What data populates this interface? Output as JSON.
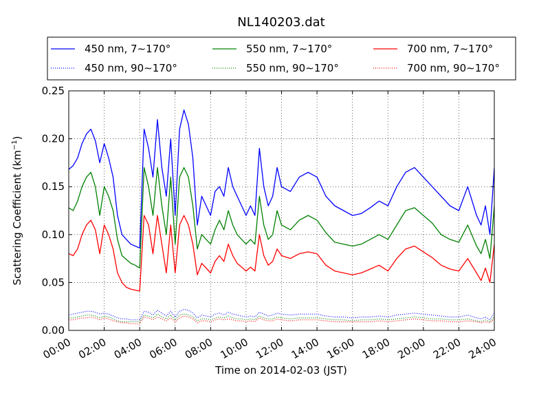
{
  "chart_data": {
    "type": "line",
    "title": "NL140203.dat",
    "xlabel": "Time on 2014-02-03 (JST)",
    "ylabel_main": "Scattering Coefficient (km",
    "ylabel_sup": "−1",
    "ylabel_end": ")",
    "xlim": [
      "00:00",
      "24:00"
    ],
    "ylim": [
      0,
      0.25
    ],
    "grid": true,
    "legend_position": "top",
    "x_ticks": [
      "00:00",
      "02:00",
      "04:00",
      "06:00",
      "08:00",
      "10:00",
      "12:00",
      "14:00",
      "16:00",
      "18:00",
      "20:00",
      "22:00",
      "24:00"
    ],
    "y_ticks": [
      "0.00",
      "0.05",
      "0.10",
      "0.15",
      "0.20",
      "0.25"
    ],
    "x_hours": [
      0,
      0.25,
      0.5,
      0.75,
      1,
      1.25,
      1.5,
      1.75,
      2,
      2.25,
      2.5,
      2.75,
      3,
      3.25,
      3.5,
      3.75,
      4,
      4.25,
      4.5,
      4.75,
      5,
      5.25,
      5.5,
      5.75,
      6,
      6.25,
      6.5,
      6.75,
      7,
      7.25,
      7.5,
      7.75,
      8,
      8.25,
      8.5,
      8.75,
      9,
      9.25,
      9.5,
      9.75,
      10,
      10.25,
      10.5,
      10.75,
      11,
      11.25,
      11.5,
      11.75,
      12,
      12.5,
      13,
      13.5,
      14,
      14.5,
      15,
      15.5,
      16,
      16.5,
      17,
      17.5,
      18,
      18.5,
      19,
      19.5,
      20,
      20.5,
      21,
      21.5,
      22,
      22.5,
      23,
      23.25,
      23.5,
      23.75,
      24
    ],
    "series": [
      {
        "name": "450 nm, 7∼170°",
        "color": "#0000ff",
        "style": "solid",
        "values": [
          0.168,
          0.172,
          0.18,
          0.195,
          0.205,
          0.21,
          0.198,
          0.175,
          0.195,
          0.18,
          0.16,
          0.12,
          0.1,
          0.095,
          0.09,
          0.088,
          0.086,
          0.21,
          0.19,
          0.16,
          0.22,
          0.17,
          0.14,
          0.2,
          0.12,
          0.21,
          0.23,
          0.215,
          0.18,
          0.11,
          0.14,
          0.13,
          0.12,
          0.145,
          0.15,
          0.14,
          0.17,
          0.15,
          0.14,
          0.13,
          0.12,
          0.13,
          0.12,
          0.19,
          0.15,
          0.13,
          0.14,
          0.17,
          0.15,
          0.145,
          0.16,
          0.165,
          0.16,
          0.14,
          0.13,
          0.125,
          0.12,
          0.122,
          0.128,
          0.135,
          0.13,
          0.15,
          0.165,
          0.17,
          0.16,
          0.15,
          0.14,
          0.13,
          0.125,
          0.15,
          0.12,
          0.11,
          0.13,
          0.1,
          0.17
        ]
      },
      {
        "name": "550 nm, 7∼170°",
        "color": "#008000",
        "style": "solid",
        "values": [
          0.128,
          0.125,
          0.135,
          0.15,
          0.16,
          0.165,
          0.15,
          0.12,
          0.15,
          0.14,
          0.125,
          0.095,
          0.078,
          0.074,
          0.07,
          0.068,
          0.065,
          0.17,
          0.15,
          0.12,
          0.17,
          0.13,
          0.1,
          0.16,
          0.09,
          0.16,
          0.17,
          0.16,
          0.13,
          0.085,
          0.1,
          0.095,
          0.09,
          0.105,
          0.115,
          0.105,
          0.125,
          0.11,
          0.1,
          0.095,
          0.09,
          0.095,
          0.09,
          0.14,
          0.11,
          0.095,
          0.1,
          0.125,
          0.11,
          0.105,
          0.115,
          0.12,
          0.115,
          0.102,
          0.092,
          0.09,
          0.088,
          0.09,
          0.095,
          0.1,
          0.095,
          0.11,
          0.125,
          0.128,
          0.12,
          0.112,
          0.1,
          0.095,
          0.092,
          0.11,
          0.088,
          0.08,
          0.095,
          0.075,
          0.13
        ]
      },
      {
        "name": "700 nm, 7∼170°",
        "color": "#ff0000",
        "style": "solid",
        "values": [
          0.08,
          0.078,
          0.085,
          0.1,
          0.11,
          0.115,
          0.105,
          0.08,
          0.11,
          0.1,
          0.085,
          0.06,
          0.05,
          0.045,
          0.043,
          0.042,
          0.041,
          0.12,
          0.11,
          0.08,
          0.12,
          0.09,
          0.06,
          0.11,
          0.06,
          0.11,
          0.12,
          0.11,
          0.09,
          0.058,
          0.07,
          0.065,
          0.06,
          0.072,
          0.078,
          0.072,
          0.09,
          0.078,
          0.07,
          0.066,
          0.062,
          0.066,
          0.062,
          0.1,
          0.078,
          0.068,
          0.072,
          0.085,
          0.078,
          0.075,
          0.08,
          0.082,
          0.08,
          0.068,
          0.062,
          0.06,
          0.058,
          0.06,
          0.064,
          0.068,
          0.062,
          0.075,
          0.085,
          0.088,
          0.082,
          0.076,
          0.068,
          0.064,
          0.062,
          0.075,
          0.06,
          0.052,
          0.065,
          0.05,
          0.09
        ]
      },
      {
        "name": "450 nm, 90∼170°",
        "color": "#0000ff",
        "style": "dotted",
        "values": [
          0.016,
          0.017,
          0.018,
          0.019,
          0.02,
          0.02,
          0.019,
          0.017,
          0.018,
          0.017,
          0.015,
          0.013,
          0.012,
          0.012,
          0.011,
          0.011,
          0.011,
          0.02,
          0.019,
          0.016,
          0.021,
          0.018,
          0.015,
          0.02,
          0.014,
          0.02,
          0.022,
          0.021,
          0.018,
          0.013,
          0.016,
          0.015,
          0.014,
          0.017,
          0.018,
          0.016,
          0.019,
          0.017,
          0.016,
          0.015,
          0.014,
          0.015,
          0.014,
          0.019,
          0.017,
          0.015,
          0.016,
          0.018,
          0.017,
          0.016,
          0.017,
          0.017,
          0.017,
          0.015,
          0.014,
          0.014,
          0.013,
          0.014,
          0.014,
          0.015,
          0.014,
          0.016,
          0.017,
          0.018,
          0.017,
          0.016,
          0.015,
          0.014,
          0.014,
          0.016,
          0.013,
          0.012,
          0.014,
          0.011,
          0.018
        ]
      },
      {
        "name": "550 nm, 90∼170°",
        "color": "#008000",
        "style": "dotted",
        "values": [
          0.013,
          0.013,
          0.014,
          0.015,
          0.016,
          0.016,
          0.015,
          0.013,
          0.015,
          0.014,
          0.012,
          0.01,
          0.009,
          0.009,
          0.009,
          0.009,
          0.009,
          0.016,
          0.015,
          0.013,
          0.017,
          0.014,
          0.012,
          0.016,
          0.011,
          0.016,
          0.017,
          0.016,
          0.014,
          0.01,
          0.012,
          0.012,
          0.011,
          0.013,
          0.014,
          0.013,
          0.015,
          0.013,
          0.012,
          0.012,
          0.011,
          0.012,
          0.011,
          0.015,
          0.013,
          0.012,
          0.012,
          0.014,
          0.013,
          0.012,
          0.013,
          0.013,
          0.013,
          0.012,
          0.011,
          0.011,
          0.01,
          0.011,
          0.011,
          0.012,
          0.011,
          0.012,
          0.013,
          0.014,
          0.013,
          0.012,
          0.012,
          0.011,
          0.011,
          0.012,
          0.01,
          0.009,
          0.011,
          0.009,
          0.014
        ]
      },
      {
        "name": "700 nm, 90∼170°",
        "color": "#ff0000",
        "style": "dotted",
        "values": [
          0.011,
          0.011,
          0.012,
          0.013,
          0.013,
          0.014,
          0.013,
          0.011,
          0.013,
          0.012,
          0.01,
          0.009,
          0.008,
          0.008,
          0.007,
          0.007,
          0.007,
          0.014,
          0.013,
          0.011,
          0.014,
          0.012,
          0.01,
          0.013,
          0.009,
          0.013,
          0.015,
          0.014,
          0.012,
          0.008,
          0.01,
          0.01,
          0.009,
          0.011,
          0.012,
          0.011,
          0.012,
          0.011,
          0.01,
          0.01,
          0.009,
          0.01,
          0.009,
          0.013,
          0.011,
          0.01,
          0.01,
          0.012,
          0.011,
          0.01,
          0.011,
          0.011,
          0.011,
          0.01,
          0.009,
          0.009,
          0.009,
          0.009,
          0.009,
          0.01,
          0.009,
          0.01,
          0.011,
          0.012,
          0.011,
          0.01,
          0.01,
          0.009,
          0.009,
          0.01,
          0.009,
          0.008,
          0.009,
          0.008,
          0.012
        ]
      }
    ]
  }
}
